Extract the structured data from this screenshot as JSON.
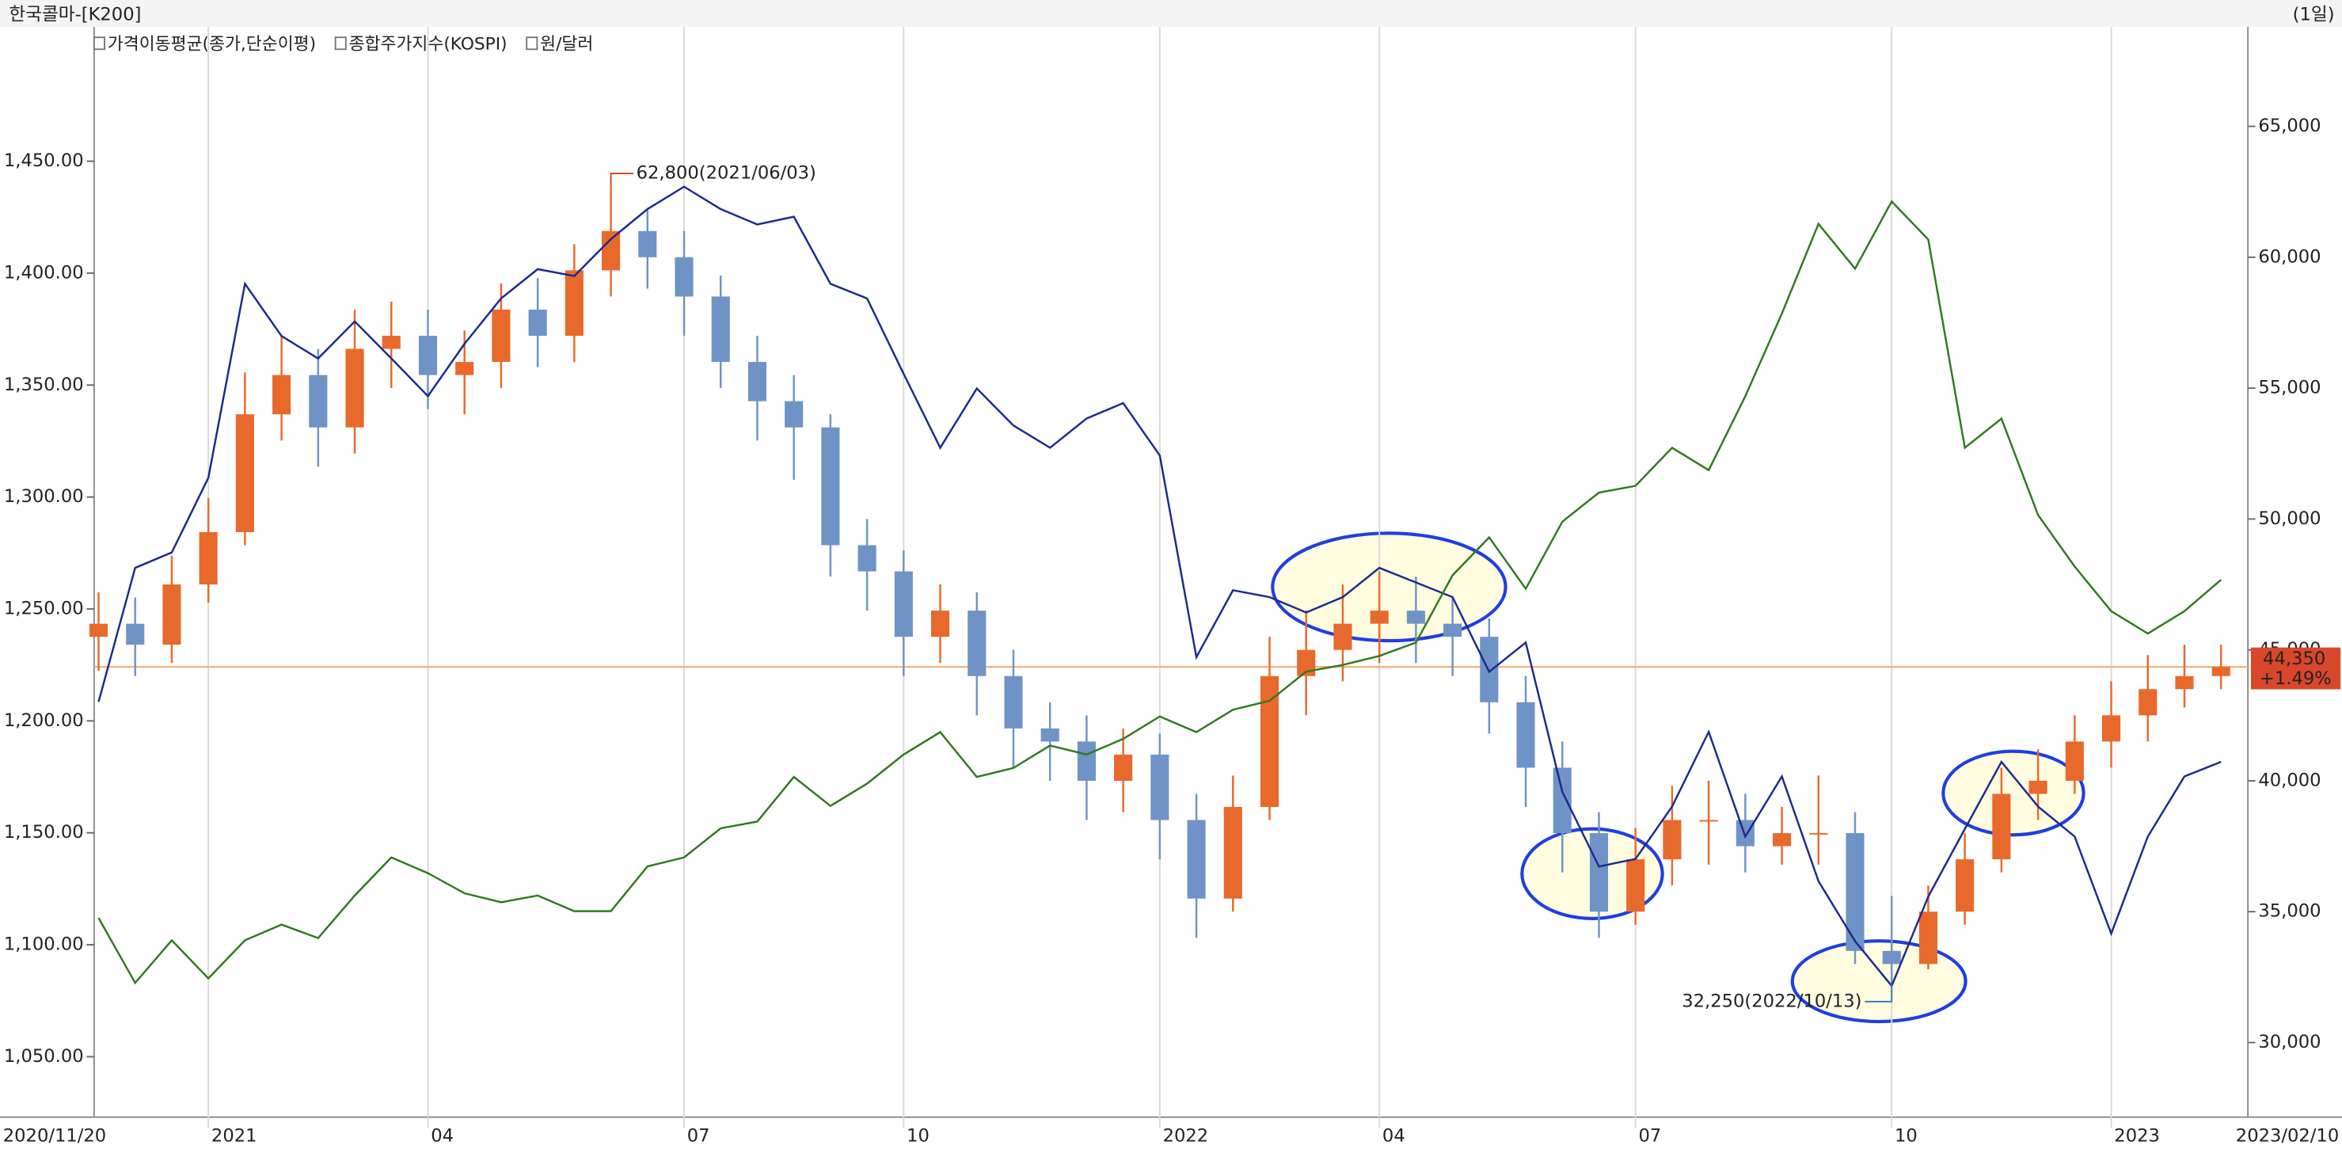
{
  "header": {
    "title": "한국콜마-[K200]",
    "period": "(1일)"
  },
  "chart_data": {
    "type": "candlestick",
    "categories": [
      "2020/11/20",
      null,
      null,
      "2021",
      null,
      null,
      null,
      null,
      null,
      "04",
      null,
      null,
      null,
      null,
      null,
      null,
      "07",
      null,
      null,
      null,
      null,
      null,
      "10",
      null,
      null,
      null,
      null,
      null,
      null,
      "2022",
      null,
      null,
      null,
      null,
      null,
      "04",
      null,
      null,
      null,
      null,
      null,
      null,
      "07",
      null,
      null,
      null,
      null,
      null,
      null,
      "10",
      null,
      null,
      null,
      null,
      null,
      "2023",
      null,
      null,
      "2023/02/10"
    ],
    "ohlc": {
      "name": "가격이동평균(종가,단순이평)",
      "up_color": "#e8692c",
      "down_color": "#6f93c6",
      "axis": "y2",
      "open": [
        45500,
        46000,
        45200,
        47500,
        49500,
        54000,
        55500,
        53500,
        56500,
        57000,
        55500,
        56000,
        58000,
        57000,
        59500,
        61000,
        60000,
        58500,
        56000,
        54500,
        53500,
        49000,
        48000,
        45500,
        46500,
        44000,
        42000,
        41500,
        40000,
        41000,
        38500,
        35500,
        39000,
        44000,
        45000,
        46000,
        46500,
        46000,
        45500,
        43000,
        40500,
        38000,
        35000,
        37000,
        38500,
        38500,
        37500,
        38000,
        38000,
        33500,
        33000,
        35000,
        37000,
        39500,
        40000,
        41500,
        42500,
        43500,
        44000
      ],
      "high": [
        47200,
        47000,
        48600,
        50800,
        55600,
        57000,
        56500,
        58000,
        58300,
        58000,
        57200,
        59000,
        59200,
        60500,
        62800,
        61800,
        61000,
        59300,
        57000,
        55500,
        54000,
        50000,
        48800,
        47500,
        47200,
        45000,
        43000,
        42500,
        42000,
        41800,
        39500,
        40200,
        45500,
        46500,
        47500,
        48000,
        47800,
        47000,
        46200,
        44000,
        41500,
        38800,
        38200,
        39800,
        40000,
        39500,
        39000,
        40200,
        38800,
        35600,
        36000,
        38000,
        40500,
        41200,
        42500,
        43800,
        44800,
        45200,
        45200
      ],
      "low": [
        44200,
        44000,
        44500,
        46800,
        49000,
        53000,
        52000,
        52500,
        55000,
        54200,
        54000,
        55000,
        55800,
        56000,
        58500,
        58800,
        57000,
        55000,
        53000,
        51500,
        47800,
        46500,
        44000,
        44500,
        42500,
        40500,
        40000,
        38500,
        38800,
        37000,
        34000,
        35000,
        38500,
        42500,
        43800,
        44500,
        44500,
        44000,
        41800,
        39000,
        36500,
        34000,
        34500,
        36000,
        36800,
        36500,
        36800,
        36800,
        33000,
        32250,
        32800,
        34500,
        36500,
        38500,
        39500,
        40500,
        41500,
        42800,
        43500
      ],
      "close": [
        46000,
        45200,
        47500,
        49500,
        54000,
        55500,
        53500,
        56500,
        57000,
        55500,
        56000,
        58000,
        57000,
        59500,
        61000,
        60000,
        58500,
        56000,
        54500,
        53500,
        49000,
        48000,
        45500,
        46500,
        44000,
        42000,
        41500,
        40000,
        41000,
        38500,
        35500,
        39000,
        44000,
        45000,
        46000,
        46500,
        46000,
        45500,
        43000,
        40500,
        38000,
        35000,
        37000,
        38500,
        38500,
        37500,
        38000,
        38000,
        33500,
        33000,
        35000,
        37000,
        39500,
        40000,
        41500,
        42500,
        43500,
        44000,
        44350
      ]
    },
    "series": [
      {
        "name": "종합주가지수(KOSPI)",
        "color": "#1b2a8f",
        "axis": "y3",
        "values": [
          2562,
          2754,
          2776,
          2883,
          3161,
          3086,
          3054,
          3107,
          3054,
          3000,
          3075,
          3140,
          3182,
          3172,
          3225,
          3268,
          3300,
          3268,
          3246,
          3257,
          3161,
          3140,
          3032,
          2926,
          3011,
          2958,
          2926,
          2968,
          2990,
          2915,
          2626,
          2722,
          2712,
          2690,
          2712,
          2754,
          2733,
          2712,
          2605,
          2647,
          2433,
          2326,
          2337,
          2412,
          2519,
          2369,
          2455,
          2305,
          2219,
          2155,
          2283,
          2380,
          2476,
          2412,
          2369,
          2230,
          2369,
          2455,
          2476
        ]
      },
      {
        "name": "원/달러",
        "color": "#2f7a1f",
        "axis": "y",
        "values": [
          1112,
          1083,
          1102,
          1085,
          1102,
          1109,
          1103,
          1122,
          1139,
          1132,
          1123,
          1119,
          1122,
          1115,
          1115,
          1135,
          1139,
          1152,
          1155,
          1175,
          1162,
          1172,
          1185,
          1195,
          1175,
          1179,
          1189,
          1185,
          1192,
          1202,
          1195,
          1205,
          1209,
          1222,
          1225,
          1229,
          1235,
          1265,
          1282,
          1259,
          1289,
          1302,
          1305,
          1322,
          1312,
          1345,
          1382,
          1422,
          1402,
          1432,
          1415,
          1322,
          1335,
          1292,
          1269,
          1249,
          1239,
          1249,
          1263
        ]
      }
    ],
    "ylim": [
      1023,
      1510
    ],
    "yticks": [
      {
        "value": 1050,
        "label": "1,050.00"
      },
      {
        "value": 1100,
        "label": "1,100.00"
      },
      {
        "value": 1150,
        "label": "1,150.00"
      },
      {
        "value": 1200,
        "label": "1,200.00"
      },
      {
        "value": 1250,
        "label": "1,250.00"
      },
      {
        "value": 1300,
        "label": "1,300.00"
      },
      {
        "value": 1350,
        "label": "1,350.00"
      },
      {
        "value": 1400,
        "label": "1,400.00"
      },
      {
        "value": 1450,
        "label": "1,450.00"
      }
    ],
    "y2lim": [
      27150,
      68800
    ],
    "y2ticks": [
      {
        "value": 30000,
        "label": "30,000"
      },
      {
        "value": 35000,
        "label": "35,000"
      },
      {
        "value": 40000,
        "label": "40,000"
      },
      {
        "value": 45000,
        "label": "45,000"
      },
      {
        "value": 50000,
        "label": "50,000"
      },
      {
        "value": 55000,
        "label": "55,000"
      },
      {
        "value": 60000,
        "label": "60,000"
      },
      {
        "value": 65000,
        "label": "65,000"
      }
    ],
    "y3lim": [
      1967,
      3529
    ],
    "last_price": {
      "label": "44,350",
      "change": "+1.49%",
      "line_color": "#f4b27a",
      "box_color": "#d9472b"
    },
    "annotations": [
      {
        "text": "62,800(2021/06/03)",
        "color": "#d2401a"
      },
      {
        "text": "32,250(2022/10/13)",
        "color": "#3a6fc0"
      }
    ]
  }
}
